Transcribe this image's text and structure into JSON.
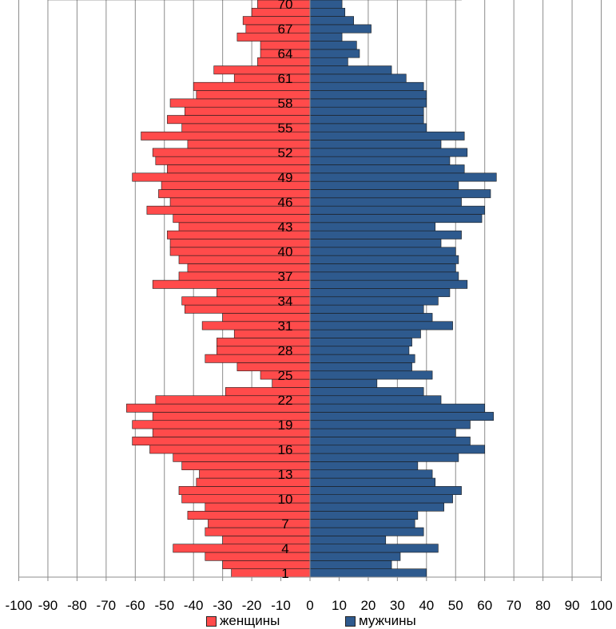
{
  "chart_data": {
    "type": "bar",
    "orientation": "horizontal",
    "subtype": "population-pyramid",
    "xlim": [
      -100,
      100
    ],
    "x_ticks": [
      -100,
      -90,
      -80,
      -70,
      -60,
      -50,
      -40,
      -30,
      -20,
      -10,
      0,
      10,
      20,
      30,
      40,
      50,
      60,
      70,
      80,
      90,
      100
    ],
    "x_tick_labels": [
      "-100",
      "-90",
      "-80",
      "-70",
      "-60",
      "-50",
      "-40",
      "-30",
      "-20",
      "-10",
      "0",
      "10",
      "20",
      "30",
      "40",
      "50",
      "60",
      "70",
      "80",
      "90",
      "100"
    ],
    "categories": [
      1,
      2,
      3,
      4,
      5,
      6,
      7,
      8,
      9,
      10,
      11,
      12,
      13,
      14,
      15,
      16,
      17,
      18,
      19,
      20,
      21,
      22,
      23,
      24,
      25,
      26,
      27,
      28,
      29,
      30,
      31,
      32,
      33,
      34,
      35,
      36,
      37,
      38,
      39,
      40,
      41,
      42,
      43,
      44,
      45,
      46,
      47,
      48,
      49,
      50,
      51,
      52,
      53,
      54,
      55,
      56,
      57,
      58,
      59,
      60,
      61,
      62,
      63,
      64,
      65,
      66,
      67,
      68,
      69,
      70,
      71
    ],
    "y_tick_labels": [
      "1",
      "4",
      "7",
      "10",
      "13",
      "16",
      "19",
      "22",
      "25",
      "28",
      "31",
      "34",
      "37",
      "40",
      "43",
      "46",
      "49",
      "52",
      "55",
      "58",
      "61",
      "64",
      "67",
      "70"
    ],
    "grid": "vertical",
    "legend_position": "bottom",
    "series": [
      {
        "name": "женщины",
        "color": "#ff4b4b",
        "values": [
          -27,
          -30,
          -36,
          -47,
          -30,
          -36,
          -35,
          -42,
          -36,
          -44,
          -45,
          -39,
          -38,
          -44,
          -47,
          -55,
          -61,
          -54,
          -61,
          -54,
          -63,
          -53,
          -29,
          -13,
          -17,
          -25,
          -36,
          -32,
          -32,
          -26,
          -37,
          -30,
          -43,
          -44,
          -32,
          -54,
          -45,
          -42,
          -45,
          -48,
          -48,
          -49,
          -45,
          -47,
          -56,
          -48,
          -52,
          -51,
          -61,
          -49,
          -53,
          -54,
          -42,
          -58,
          -44,
          -49,
          -43,
          -48,
          -39,
          -40,
          -26,
          -33,
          -18,
          -17,
          -17,
          -25,
          -22,
          -23,
          -20,
          -18,
          -90
        ]
      },
      {
        "name": "мужчины",
        "color": "#2e5a8e",
        "values": [
          40,
          28,
          31,
          44,
          26,
          39,
          36,
          37,
          46,
          49,
          52,
          43,
          42,
          37,
          51,
          60,
          55,
          50,
          55,
          63,
          60,
          45,
          39,
          23,
          42,
          35,
          36,
          34,
          35,
          38,
          49,
          42,
          39,
          44,
          48,
          54,
          51,
          50,
          51,
          50,
          45,
          52,
          43,
          59,
          60,
          52,
          62,
          51,
          64,
          53,
          48,
          54,
          45,
          53,
          40,
          39,
          39,
          40,
          40,
          39,
          33,
          28,
          13,
          17,
          16,
          11,
          21,
          15,
          12,
          11,
          52
        ]
      }
    ]
  }
}
